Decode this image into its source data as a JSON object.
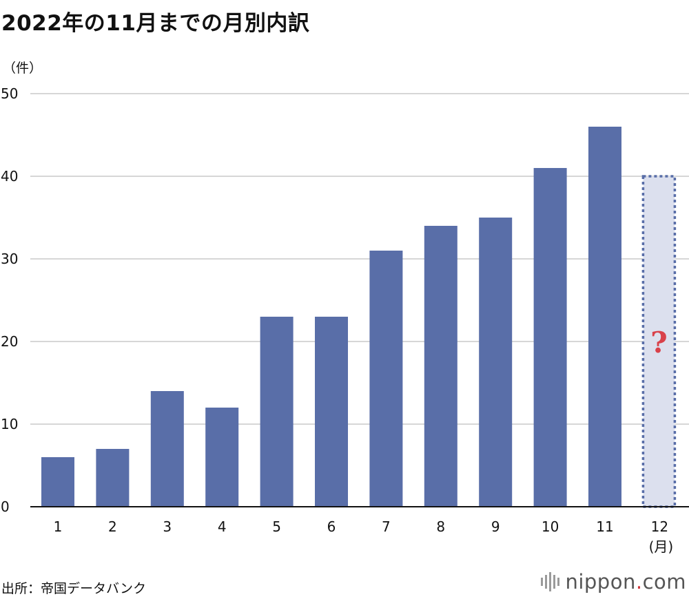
{
  "title": "2022年の11月までの月別内訳",
  "source": "出所：帝国データバンク",
  "logo": {
    "name": "nippon",
    "dot": ".",
    "suffix": "com"
  },
  "colors": {
    "bar": "#596ea8",
    "projected_fill": "#dce0ee",
    "projected_border": "#596ea8",
    "question_mark": "#d9414a",
    "grid": "#c8c8c8",
    "axis": "#111111"
  },
  "chart_data": {
    "type": "bar",
    "title": "2022年の11月までの月別内訳",
    "ylabel": "（件）",
    "xlabel": "(月)",
    "ylim": [
      0,
      50
    ],
    "yticks": [
      0,
      10,
      20,
      30,
      40,
      50
    ],
    "grid": true,
    "categories": [
      "1",
      "2",
      "3",
      "4",
      "5",
      "6",
      "7",
      "8",
      "9",
      "10",
      "11",
      "12"
    ],
    "values": [
      6,
      7,
      14,
      12,
      23,
      23,
      31,
      34,
      35,
      41,
      46,
      null
    ],
    "projected": {
      "category": "12",
      "value": 40,
      "style": "dashed",
      "label": "?"
    }
  }
}
